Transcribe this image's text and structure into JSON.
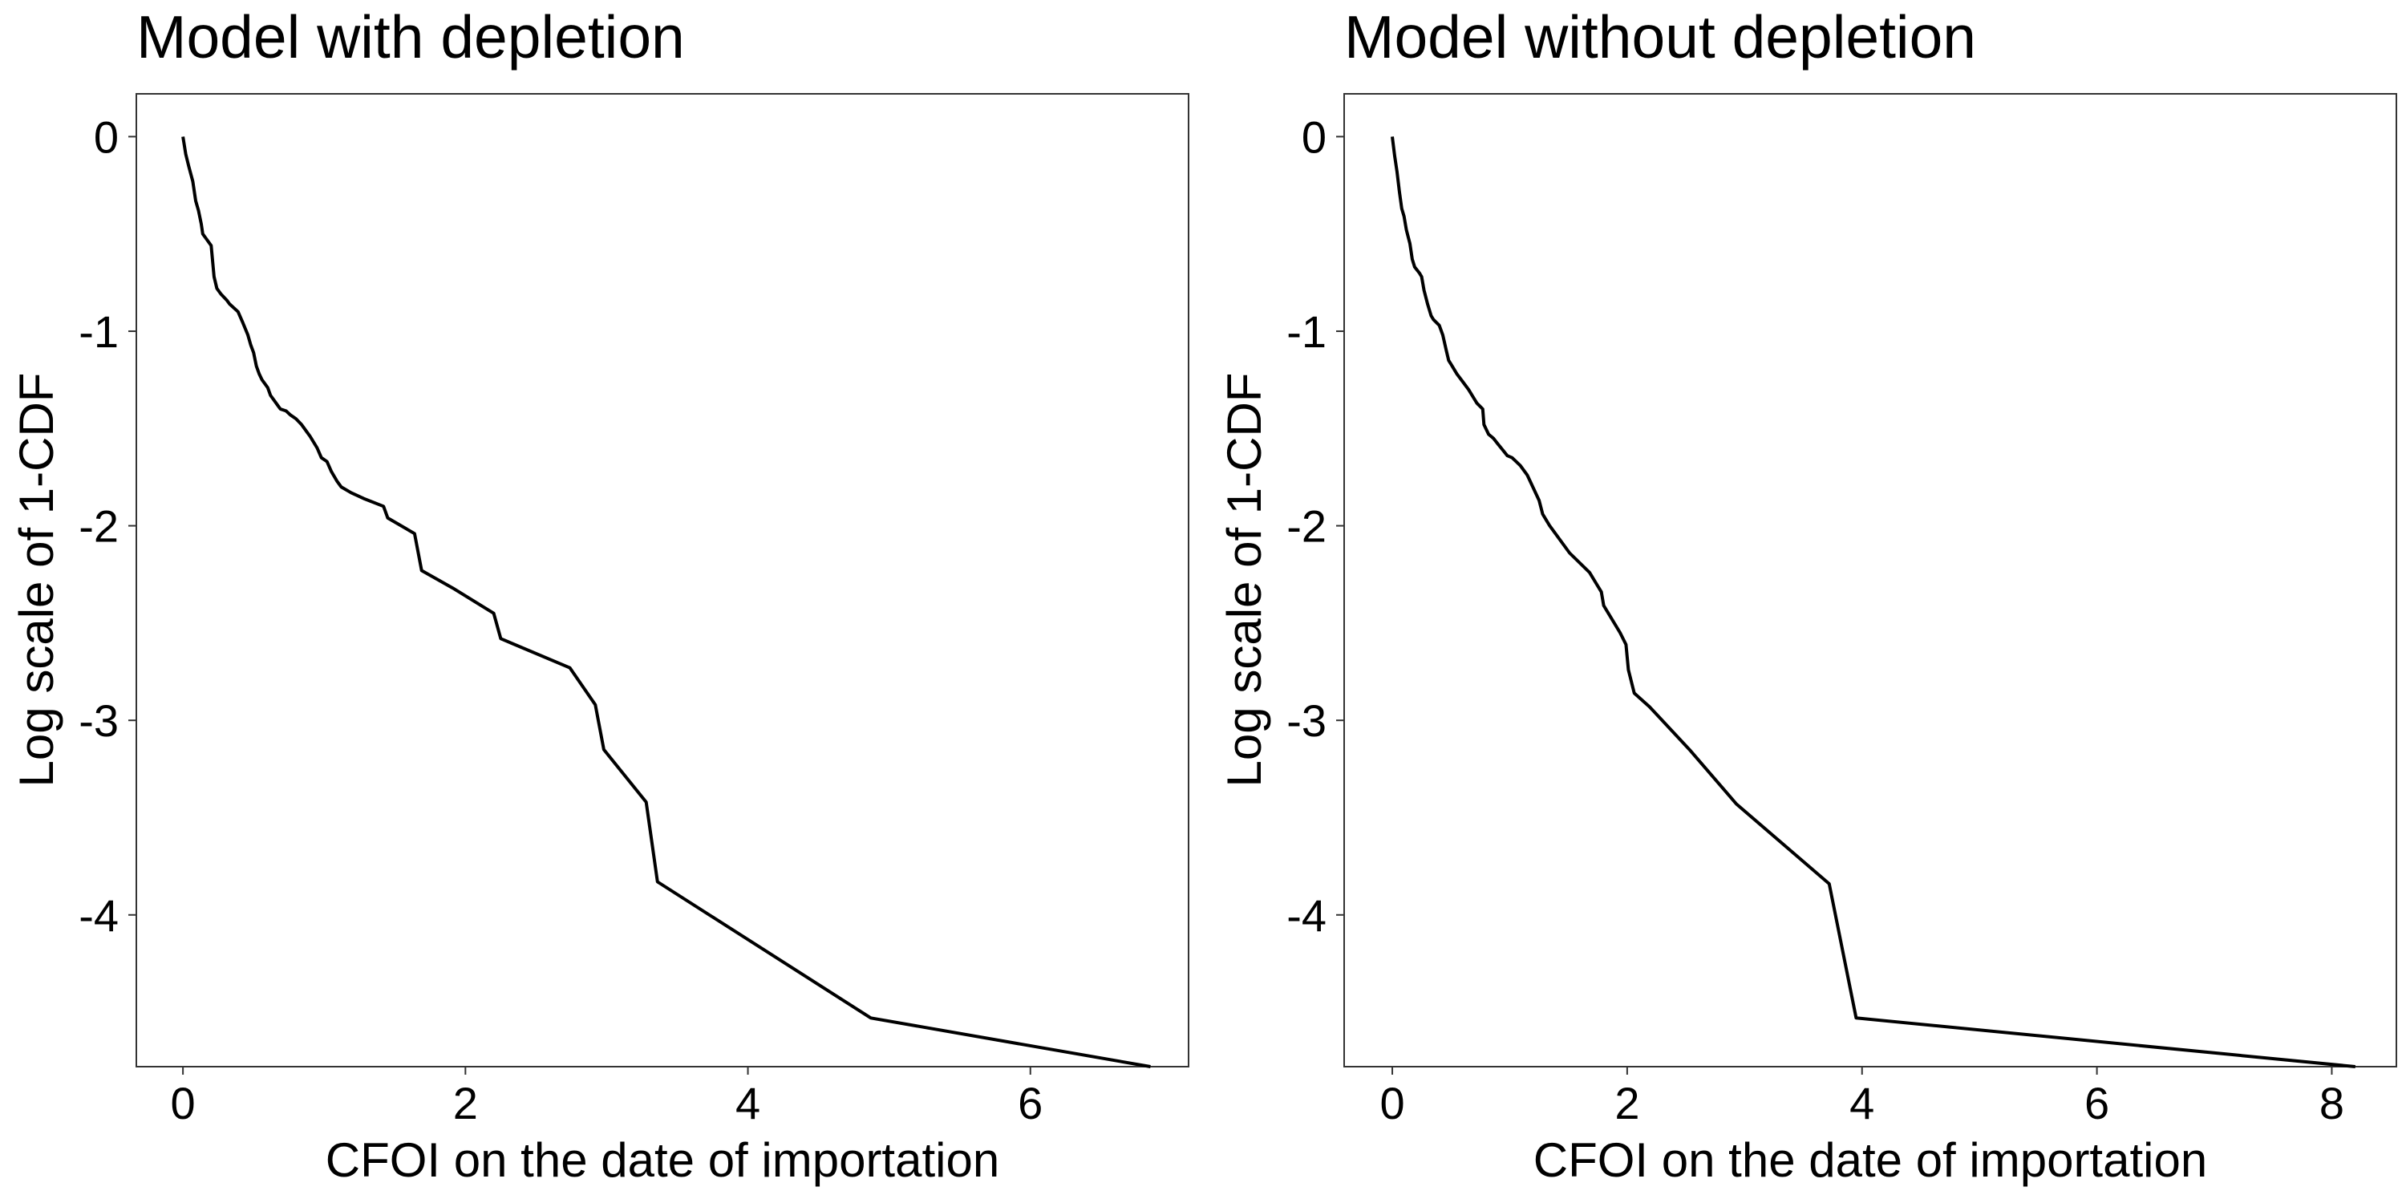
{
  "chart_data": [
    {
      "type": "line",
      "title": "Model with depletion",
      "xlabel": "CFOI on the date of importation",
      "ylabel": "Log scale of 1-CDF",
      "xlim": [
        -0.33,
        7.12
      ],
      "ylim": [
        -4.78,
        0.22
      ],
      "xticks": [
        0,
        2,
        4,
        6
      ],
      "yticks": [
        0,
        -1,
        -2,
        -3,
        -4
      ],
      "xtick_labels": [
        "0",
        "2",
        "4",
        "6"
      ],
      "ytick_labels": [
        "0",
        "-1",
        "-2",
        "-3",
        "-4"
      ],
      "grid": false,
      "series": [
        {
          "x": [
            0.0,
            0.02,
            0.04,
            0.07,
            0.09,
            0.11,
            0.13,
            0.14,
            0.16,
            0.2,
            0.22,
            0.24,
            0.25,
            0.27,
            0.31,
            0.33,
            0.39,
            0.42,
            0.46,
            0.48,
            0.5,
            0.52,
            0.54,
            0.56,
            0.6,
            0.62,
            0.65,
            0.67,
            0.69,
            0.73,
            0.76,
            0.8,
            0.84,
            0.9,
            0.95,
            0.98,
            1.02,
            1.05,
            1.09,
            1.12,
            1.19,
            1.28,
            1.42,
            1.45,
            1.64,
            1.69,
            1.91,
            2.2,
            2.25,
            2.74,
            2.92,
            2.98,
            3.28,
            3.36,
            4.87,
            6.85
          ],
          "y": [
            0.0,
            -0.09,
            -0.15,
            -0.23,
            -0.33,
            -0.38,
            -0.45,
            -0.5,
            -0.52,
            -0.56,
            -0.72,
            -0.78,
            -0.79,
            -0.81,
            -0.84,
            -0.86,
            -0.9,
            -0.95,
            -1.02,
            -1.07,
            -1.11,
            -1.18,
            -1.22,
            -1.25,
            -1.29,
            -1.33,
            -1.36,
            -1.38,
            -1.4,
            -1.41,
            -1.43,
            -1.45,
            -1.48,
            -1.54,
            -1.6,
            -1.65,
            -1.67,
            -1.72,
            -1.77,
            -1.8,
            -1.83,
            -1.86,
            -1.9,
            -1.96,
            -2.04,
            -2.23,
            -2.32,
            -2.45,
            -2.58,
            -2.73,
            -2.92,
            -3.15,
            -3.42,
            -3.83,
            -4.53,
            -4.78
          ]
        }
      ]
    },
    {
      "type": "line",
      "title": "Model without depletion",
      "xlabel": "CFOI on the date of importation",
      "ylabel": "Log scale of 1-CDF",
      "xlim": [
        -0.41,
        8.55
      ],
      "ylim": [
        -4.78,
        0.22
      ],
      "xticks": [
        0,
        2,
        4,
        6,
        8
      ],
      "yticks": [
        0,
        -1,
        -2,
        -3,
        -4
      ],
      "xtick_labels": [
        "0",
        "2",
        "4",
        "6",
        "8"
      ],
      "ytick_labels": [
        "0",
        "-1",
        "-2",
        "-3",
        "-4"
      ],
      "grid": false,
      "series": [
        {
          "x": [
            0.0,
            0.02,
            0.04,
            0.06,
            0.08,
            0.1,
            0.12,
            0.15,
            0.17,
            0.19,
            0.23,
            0.25,
            0.27,
            0.3,
            0.33,
            0.35,
            0.4,
            0.43,
            0.46,
            0.48,
            0.5,
            0.55,
            0.6,
            0.65,
            0.69,
            0.72,
            0.77,
            0.78,
            0.82,
            0.86,
            0.9,
            0.94,
            0.98,
            1.02,
            1.09,
            1.15,
            1.25,
            1.28,
            1.31,
            1.34,
            1.51,
            1.68,
            1.74,
            1.78,
            1.8,
            1.94,
            1.99,
            2.01,
            2.06,
            2.19,
            2.53,
            2.93,
            3.72,
            3.95,
            8.2
          ],
          "y": [
            0.0,
            -0.1,
            -0.18,
            -0.28,
            -0.37,
            -0.41,
            -0.48,
            -0.55,
            -0.63,
            -0.67,
            -0.7,
            -0.72,
            -0.79,
            -0.86,
            -0.92,
            -0.94,
            -0.97,
            -1.02,
            -1.1,
            -1.15,
            -1.17,
            -1.22,
            -1.26,
            -1.3,
            -1.34,
            -1.37,
            -1.4,
            -1.48,
            -1.53,
            -1.55,
            -1.58,
            -1.61,
            -1.64,
            -1.65,
            -1.69,
            -1.74,
            -1.87,
            -1.94,
            -1.97,
            -2.0,
            -2.14,
            -2.24,
            -2.3,
            -2.34,
            -2.41,
            -2.55,
            -2.61,
            -2.74,
            -2.86,
            -2.93,
            -3.15,
            -3.43,
            -3.84,
            -4.53,
            -4.78
          ]
        }
      ]
    }
  ]
}
